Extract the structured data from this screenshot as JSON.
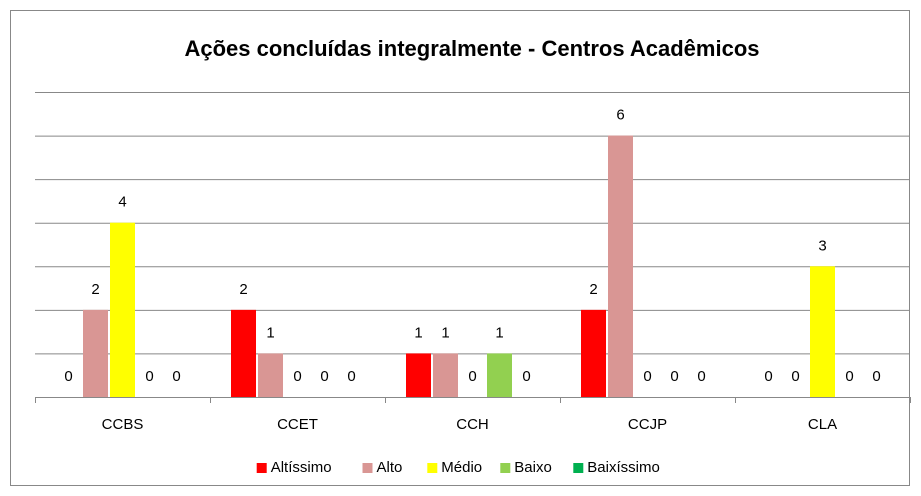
{
  "chart_data": {
    "type": "bar",
    "title": "Ações concluídas integralmente - Centros Acadêmicos",
    "categories": [
      "CCBS",
      "CCET",
      "CCH",
      "CCJP",
      "CLA"
    ],
    "series": [
      {
        "name": "Altíssimo",
        "color": "#ff0000",
        "values": [
          0,
          2,
          1,
          2,
          0
        ]
      },
      {
        "name": "Alto",
        "color": "#d99694",
        "values": [
          2,
          1,
          1,
          6,
          0
        ]
      },
      {
        "name": "Médio",
        "color": "#ffff00",
        "values": [
          4,
          0,
          0,
          0,
          3
        ]
      },
      {
        "name": "Baixo",
        "color": "#92d050",
        "values": [
          0,
          0,
          1,
          0,
          0
        ]
      },
      {
        "name": "Baixíssimo",
        "color": "#00b050",
        "values": [
          0,
          0,
          0,
          0,
          0
        ]
      }
    ],
    "ylim": [
      0,
      7
    ],
    "yticks": [
      0,
      1,
      2,
      3,
      4,
      5,
      6,
      7
    ],
    "grid": true,
    "legend": "bottom"
  }
}
